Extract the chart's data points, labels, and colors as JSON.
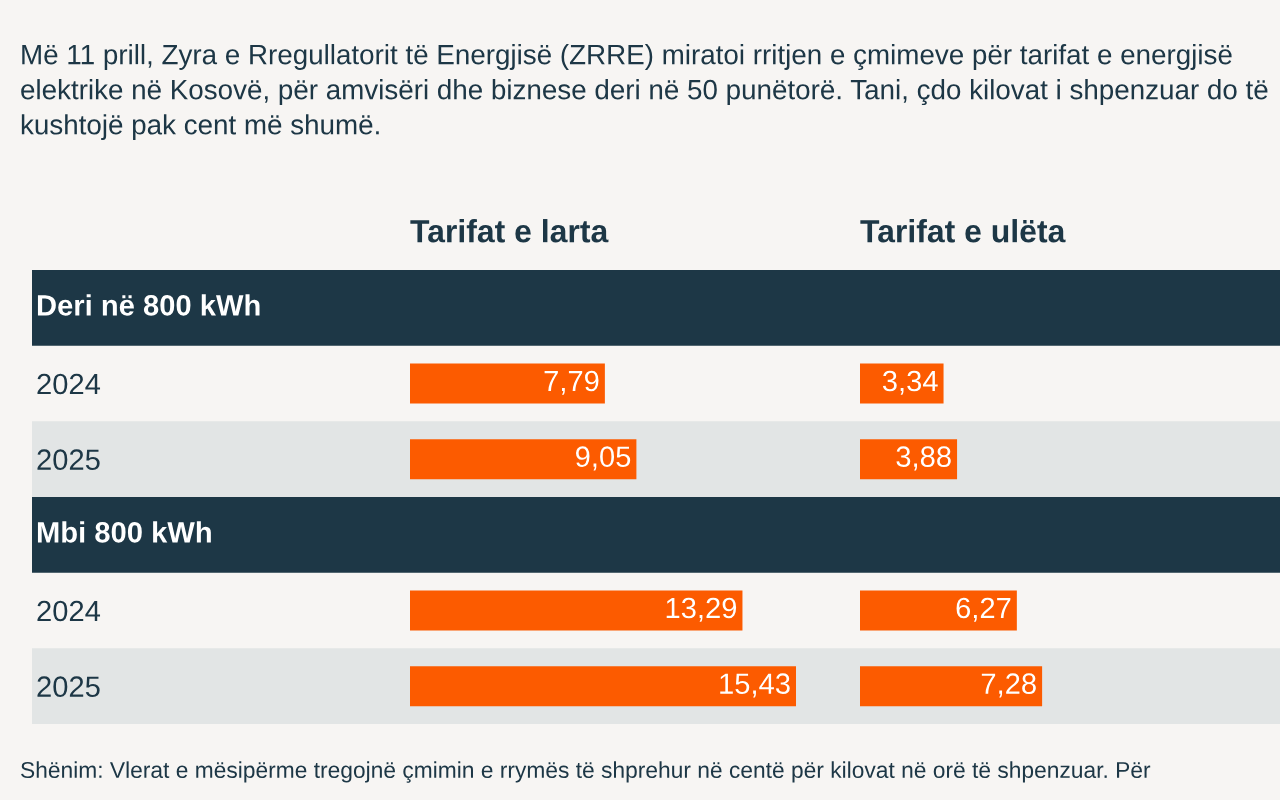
{
  "chart_data": [
    {
      "type": "bar",
      "orientation": "horizontal",
      "title": "Tarifat e larta",
      "subtitle": "Më 11 prill, Zyra e Rregullatorit të Energjisë (ZRRE) miratoi rritjen e çmimeve për tarifat e energjisë elektrike në Kosovë, për amvisëri dhe biznese deri në 50 punëtorë. Tani, çdo kilovat i shpenzuar do të kushtojë pak cent më shumë.",
      "categories": [
        "2024",
        "2025",
        "2024",
        "2025"
      ],
      "values": [
        7.79,
        9.05,
        13.29,
        15.43
      ],
      "value_labels": [
        "7,79",
        "9,05",
        "13,29",
        "15,43"
      ],
      "color": "#fc5b00",
      "annotations": [
        "Deri në 800 kWh",
        "Mbi 800 kWh",
        "Shënim: Vlerat e mësipërme tregojnë çmimin e rrymës të shprehur në centë për kilovat në orë të shpenzuar. Për"
      ]
    },
    {
      "type": "bar",
      "orientation": "horizontal",
      "title": "Tarifat e ulëta",
      "categories": [
        null,
        null,
        null,
        null
      ],
      "values": [
        3.34,
        3.88,
        6.27,
        7.28
      ],
      "value_labels": [
        "3,34",
        "3,88",
        "6,27",
        "7,28"
      ],
      "color": "#fc5b00"
    }
  ]
}
